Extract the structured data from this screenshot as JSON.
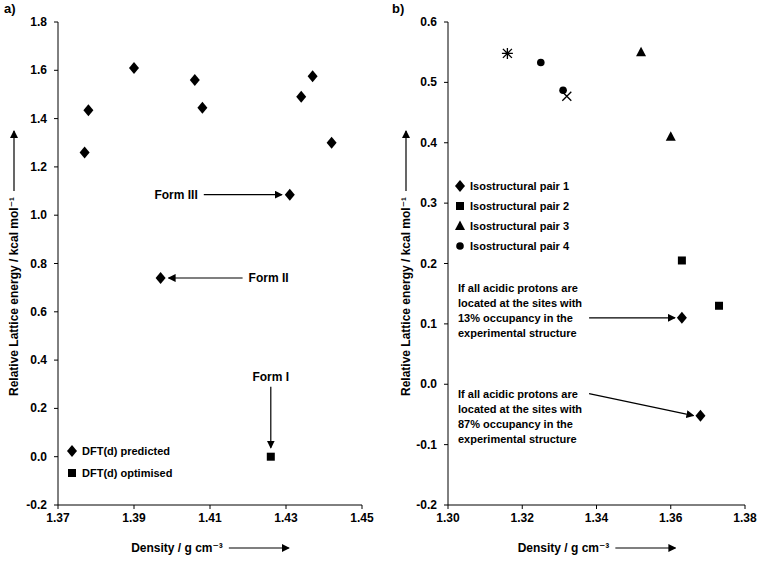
{
  "chart_data": [
    {
      "type": "scatter",
      "panel_label": "a)",
      "x_label": "Density / g cm⁻³",
      "y_label": "Relative Lattice energy / kcal mol⁻¹",
      "xlim": [
        1.37,
        1.45
      ],
      "xticks": [
        1.37,
        1.39,
        1.41,
        1.43,
        1.45
      ],
      "ylim": [
        -0.2,
        1.8
      ],
      "yticks": [
        -0.2,
        {
          "value": 0,
          "label": "0.0"
        },
        0.2,
        0.4,
        0.6,
        0.8,
        {
          "value": 1,
          "label": "1.0"
        },
        1.2,
        1.4,
        1.6,
        1.8
      ],
      "grid": false,
      "legend": "lower left",
      "series": [
        {
          "name": "DFT(d) predicted",
          "marker": "diamond",
          "color": "#000000",
          "x": [
            1.377,
            1.378,
            1.39,
            1.397,
            1.406,
            1.408,
            1.431,
            1.434,
            1.437,
            1.442
          ],
          "values": [
            1.26,
            1.435,
            1.61,
            0.74,
            1.56,
            1.445,
            1.085,
            1.49,
            1.575,
            1.3
          ]
        },
        {
          "name": "DFT(d) optimised",
          "marker": "square",
          "color": "#000000",
          "x": [
            1.426
          ],
          "values": [
            0
          ]
        }
      ],
      "annotations": [
        {
          "text": [
            "Form III"
          ],
          "x": 1.431,
          "y": 1.085
        },
        {
          "text": [
            "Form II"
          ],
          "x": 1.397,
          "y": 0.74
        },
        {
          "text": [
            "Form I"
          ],
          "x": 1.426,
          "y": 0
        }
      ]
    },
    {
      "type": "scatter",
      "panel_label": "b)",
      "x_label": "Density / g cm⁻³",
      "y_label": "Relative Lattice energy / kcal mol⁻¹",
      "xlim": [
        1.3,
        1.38
      ],
      "xticks": [
        {
          "value": 1.3,
          "label": "1.30"
        },
        1.32,
        1.34,
        1.36,
        1.38
      ],
      "ylim": [
        -0.2,
        0.6
      ],
      "yticks": [
        -0.2,
        -0.1,
        {
          "value": 0,
          "label": "0.0"
        },
        0.1,
        0.2,
        0.3,
        0.4,
        0.5,
        0.6
      ],
      "grid": false,
      "legend": "center left",
      "series": [
        {
          "name": "Isostructural pair 1",
          "marker": "diamond",
          "color": "#000000",
          "x": [
            1.363,
            1.368
          ],
          "values": [
            0.11,
            -0.052
          ]
        },
        {
          "name": "Isostructural pair 2",
          "marker": "square",
          "color": "#000000",
          "x": [
            1.363,
            1.373
          ],
          "values": [
            0.205,
            0.13
          ]
        },
        {
          "name": "Isostructural pair 3",
          "marker": "triangle",
          "color": "#000000",
          "x": [
            1.352,
            1.36
          ],
          "values": [
            0.55,
            0.41
          ]
        },
        {
          "name": "Isostructural pair 4",
          "marker": "circle",
          "color": "#000000",
          "x": [
            1.325,
            1.331
          ],
          "values": [
            0.533,
            0.487
          ]
        },
        {
          "marker": "star",
          "color": "#000000",
          "x": [
            1.316
          ],
          "values": [
            0.548
          ]
        },
        {
          "marker": "x",
          "color": "#000000",
          "x": [
            1.332
          ],
          "values": [
            0.477
          ]
        }
      ],
      "annotations": [
        {
          "text": [
            "If all acidic protons are",
            "located at the sites with",
            "13% occupancy in the",
            "experimental structure"
          ],
          "x": 1.363,
          "y": 0.11
        },
        {
          "text": [
            "If all acidic protons are",
            "located at the sites with",
            "87% occupancy in the",
            "experimental structure"
          ],
          "x": 1.368,
          "y": -0.052
        }
      ]
    }
  ]
}
